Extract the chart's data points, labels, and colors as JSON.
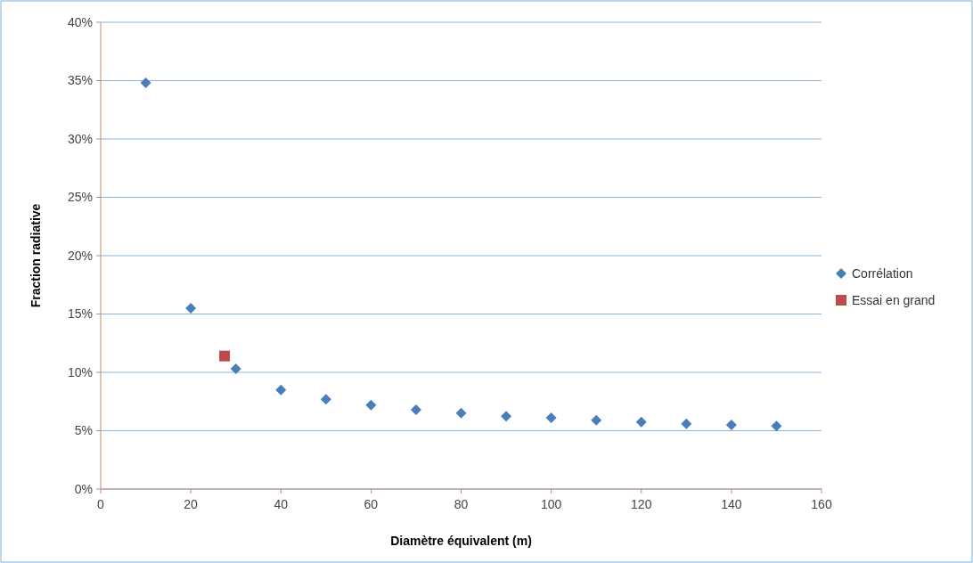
{
  "chart_data": {
    "type": "scatter",
    "xlabel": "Diamètre équivalent (m)",
    "ylabel": "Fraction radiative",
    "xlim": [
      0,
      160
    ],
    "xticks": [
      0,
      20,
      40,
      60,
      80,
      100,
      120,
      140,
      160
    ],
    "ylim": [
      0,
      40
    ],
    "yticks": [
      {
        "value": 0,
        "label": "0%"
      },
      {
        "value": 5,
        "label": "5%"
      },
      {
        "value": 10,
        "label": "10%"
      },
      {
        "value": 15,
        "label": "15%"
      },
      {
        "value": 20,
        "label": "20%"
      },
      {
        "value": 25,
        "label": "25%"
      },
      {
        "value": 30,
        "label": "30%"
      },
      {
        "value": 35,
        "label": "35%"
      },
      {
        "value": 40,
        "label": "40%"
      }
    ],
    "grid": "y",
    "legend": "right",
    "series": [
      {
        "name": "Corrélation",
        "color": "#4a7ebb",
        "marker": "diamond",
        "x": [
          10,
          20,
          30,
          40,
          50,
          60,
          70,
          80,
          90,
          100,
          110,
          120,
          130,
          140,
          150
        ],
        "values": [
          34.8,
          15.5,
          10.3,
          8.5,
          7.7,
          7.2,
          6.8,
          6.5,
          6.25,
          6.1,
          5.9,
          5.75,
          5.6,
          5.5,
          5.4
        ]
      },
      {
        "name": "Essai en grand",
        "color": "#be4b48",
        "marker": "square",
        "x": [
          27.5
        ],
        "values": [
          11.4
        ]
      }
    ]
  }
}
